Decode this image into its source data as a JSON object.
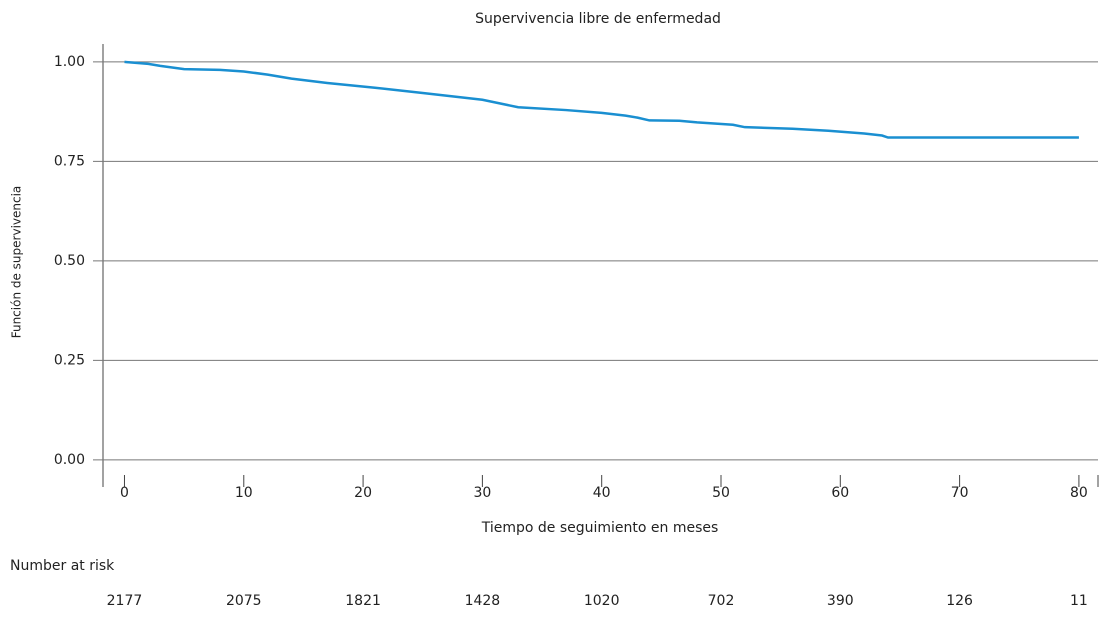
{
  "chart_data": {
    "type": "line",
    "title": "Supervivencia libre de enfermedad",
    "x_label": "Tiempo de seguimiento en meses",
    "y_label": "Función de supervivencia",
    "x": [
      0,
      2,
      3,
      5,
      8,
      10,
      12,
      14,
      17,
      21,
      25,
      30,
      33,
      37,
      40,
      42,
      43,
      44,
      46.5,
      48,
      51,
      52,
      56,
      59,
      62,
      63.5,
      64,
      70,
      80
    ],
    "series": [
      {
        "name": "Supervivencia",
        "color": "#1a8fd1",
        "values": [
          1.0,
          0.995,
          0.99,
          0.982,
          0.98,
          0.976,
          0.968,
          0.958,
          0.947,
          0.935,
          0.922,
          0.905,
          0.886,
          0.879,
          0.872,
          0.865,
          0.86,
          0.853,
          0.852,
          0.848,
          0.842,
          0.836,
          0.832,
          0.827,
          0.82,
          0.815,
          0.81,
          0.81,
          0.81
        ]
      }
    ],
    "xlim": [
      -1.8,
      81.6
    ],
    "xticks": [
      0,
      10,
      20,
      30,
      40,
      50,
      60,
      70,
      80
    ],
    "ylim": [
      -0.038,
      1.045
    ],
    "yticks": [
      {
        "value": 0,
        "label": "0.00"
      },
      {
        "value": 0.25,
        "label": "0.25"
      },
      {
        "value": 0.5,
        "label": "0.50"
      },
      {
        "value": 0.75,
        "label": "0.75"
      },
      {
        "value": 1,
        "label": "1.00"
      }
    ],
    "grid": true,
    "at_risk": {
      "label": "Number at risk",
      "values": [
        2177,
        2075,
        1821,
        1428,
        1020,
        702,
        390,
        126,
        11
      ]
    }
  }
}
